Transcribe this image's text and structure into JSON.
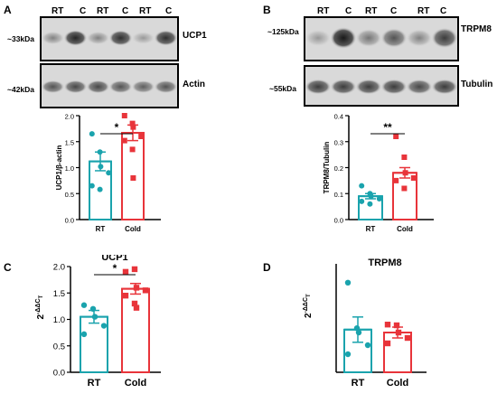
{
  "panels": {
    "A": "A",
    "B": "B",
    "C": "C",
    "D": "D"
  },
  "blots": {
    "A": {
      "lanes": [
        "RT",
        "C",
        "RT",
        "C",
        "RT",
        "C"
      ],
      "top": {
        "mw": "~33kDa",
        "name": "UCP1",
        "intensity": [
          0.55,
          0.95,
          0.55,
          0.9,
          0.45,
          0.9
        ]
      },
      "bottom": {
        "mw": "~42kDa",
        "name": "Actin",
        "intensity": [
          0.75,
          0.8,
          0.8,
          0.75,
          0.7,
          0.75
        ]
      }
    },
    "B": {
      "lanes": [
        "RT",
        "C",
        "RT",
        "C",
        "RT",
        "C"
      ],
      "top": {
        "mw": "~125kDa",
        "name": "TRPM8",
        "intensity": [
          0.45,
          1.0,
          0.6,
          0.75,
          0.55,
          0.85
        ]
      },
      "bottom": {
        "mw": "~55kDa",
        "name": "Tubulin",
        "intensity": [
          0.85,
          0.85,
          0.85,
          0.85,
          0.8,
          0.85
        ]
      }
    }
  },
  "chart_data": [
    {
      "panel": "A",
      "type": "bar",
      "categories": [
        "RT",
        "Cold"
      ],
      "ylabel": "UCP1/β-actin",
      "ylim": [
        0,
        2.0
      ],
      "yticks": [
        "0.0",
        "0.5",
        "1.0",
        "1.5",
        "2.0"
      ],
      "means": [
        1.12,
        1.67
      ],
      "sem": [
        0.18,
        0.15
      ],
      "points": [
        [
          1.65,
          1.3,
          1.02,
          0.9,
          0.65,
          0.58
        ],
        [
          2.0,
          1.85,
          1.78,
          1.6,
          1.52,
          1.35,
          0.8
        ]
      ],
      "significance": "*",
      "colors": [
        "#1aa3ad",
        "#e8343a"
      ]
    },
    {
      "panel": "B",
      "type": "bar",
      "categories": [
        "RT",
        "Cold"
      ],
      "ylabel": "TRPM8/Tubulin",
      "ylim": [
        0,
        0.4
      ],
      "yticks": [
        "0.0",
        "0.1",
        "0.2",
        "0.3",
        "0.4"
      ],
      "means": [
        0.09,
        0.18
      ],
      "sem": [
        0.01,
        0.02
      ],
      "points": [
        [
          0.13,
          0.1,
          0.09,
          0.08,
          0.07,
          0.06
        ],
        [
          0.32,
          0.24,
          0.18,
          0.16,
          0.15,
          0.12
        ]
      ],
      "significance": "**",
      "colors": [
        "#1aa3ad",
        "#e8343a"
      ]
    },
    {
      "panel": "C",
      "type": "bar",
      "title": "UCP1",
      "categories": [
        "RT",
        "Cold"
      ],
      "ylabel_main": "2",
      "ylabel_sup": "-ΔΔC",
      "ylabel_sub": "T",
      "ylim": [
        0,
        2.0
      ],
      "yticks": [
        "0.0",
        "0.5",
        "1.0",
        "1.5",
        "2.0"
      ],
      "means": [
        1.05,
        1.58
      ],
      "sem": [
        0.12,
        0.1
      ],
      "points": [
        [
          1.27,
          1.2,
          1.05,
          0.88,
          0.72
        ],
        [
          1.9,
          1.95,
          1.6,
          1.55,
          1.45,
          1.3,
          1.22
        ]
      ],
      "significance": "*",
      "colors": [
        "#1aa3ad",
        "#e8343a"
      ]
    },
    {
      "panel": "D",
      "type": "bar",
      "title": "TRPM8",
      "categories": [
        "RT",
        "Cold"
      ],
      "ylabel_main": "2",
      "ylabel_sup": "-ΔΔC",
      "ylabel_sub": "T",
      "ylim": [
        0,
        3.0
      ],
      "yticks": [],
      "means": [
        1.18,
        1.1
      ],
      "sem": [
        0.35,
        0.15
      ],
      "points": [
        [
          2.48,
          1.22,
          1.1,
          0.75,
          0.5
        ],
        [
          1.32,
          1.3,
          1.1,
          0.95,
          0.8
        ]
      ],
      "significance": "",
      "colors": [
        "#1aa3ad",
        "#e8343a"
      ]
    }
  ]
}
